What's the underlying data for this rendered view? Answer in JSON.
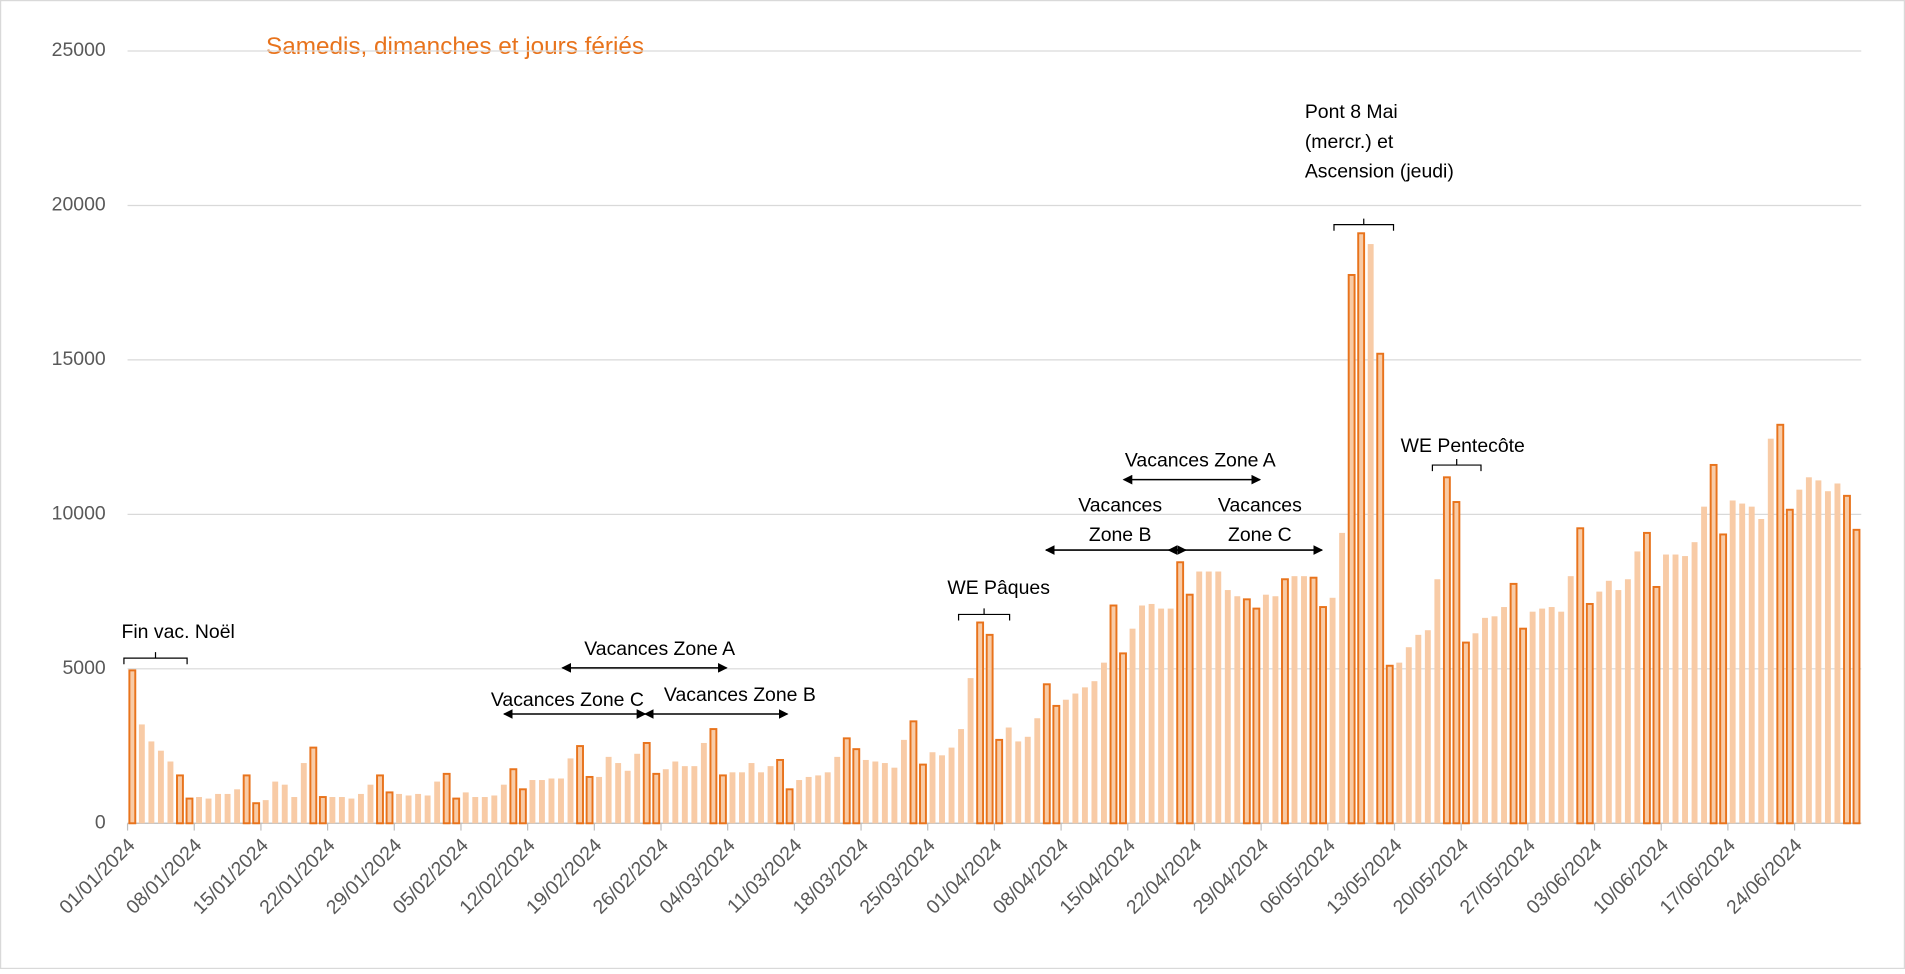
{
  "chart_data": {
    "type": "bar",
    "title": "Samedis, dimanches et jours fériés",
    "categories": [
      "01/01/2024",
      null,
      null,
      null,
      null,
      null,
      null,
      "08/01/2024",
      null,
      null,
      null,
      null,
      null,
      null,
      "15/01/2024",
      null,
      null,
      null,
      null,
      null,
      null,
      "22/01/2024",
      null,
      null,
      null,
      null,
      null,
      null,
      "29/01/2024",
      null,
      null,
      null,
      null,
      null,
      null,
      "05/02/2024",
      null,
      null,
      null,
      null,
      null,
      null,
      "12/02/2024",
      null,
      null,
      null,
      null,
      null,
      null,
      "19/02/2024",
      null,
      null,
      null,
      null,
      null,
      null,
      "26/02/2024",
      null,
      null,
      null,
      null,
      null,
      null,
      "04/03/2024",
      null,
      null,
      null,
      null,
      null,
      null,
      "11/03/2024",
      null,
      null,
      null,
      null,
      null,
      null,
      "18/03/2024",
      null,
      null,
      null,
      null,
      null,
      null,
      "25/03/2024",
      null,
      null,
      null,
      null,
      null,
      null,
      "01/04/2024",
      null,
      null,
      null,
      null,
      null,
      null,
      "08/04/2024",
      null,
      null,
      null,
      null,
      null,
      null,
      "15/04/2024",
      null,
      null,
      null,
      null,
      null,
      null,
      "22/04/2024",
      null,
      null,
      null,
      null,
      null,
      null,
      "29/04/2024",
      null,
      null,
      null,
      null,
      null,
      null,
      "06/05/2024",
      null,
      null,
      null,
      null,
      null,
      null,
      "13/05/2024",
      null,
      null,
      null,
      null,
      null,
      null,
      "20/05/2024",
      null,
      null,
      null,
      null,
      null,
      null,
      "27/05/2024",
      null,
      null,
      null,
      null,
      null,
      null,
      "03/06/2024",
      null,
      null,
      null,
      null,
      null,
      null,
      "10/06/2024",
      null,
      null,
      null,
      null,
      null,
      null,
      "17/06/2024",
      null,
      null,
      null,
      null,
      null,
      null,
      "24/06/2024",
      null,
      null,
      null,
      null,
      null,
      null
    ],
    "series": [
      {
        "name": "Samedis, dimanches et jours fériés",
        "color": "#e8731c",
        "values": [
          4950,
          null,
          null,
          null,
          null,
          1550,
          800,
          null,
          null,
          null,
          null,
          null,
          1550,
          650,
          null,
          null,
          null,
          null,
          null,
          2450,
          850,
          null,
          null,
          null,
          null,
          null,
          1550,
          1000,
          null,
          null,
          null,
          null,
          null,
          1600,
          800,
          null,
          null,
          null,
          null,
          null,
          1750,
          1100,
          null,
          null,
          null,
          null,
          null,
          2500,
          1500,
          null,
          null,
          null,
          null,
          null,
          2600,
          1600,
          null,
          null,
          null,
          null,
          null,
          3050,
          1550,
          null,
          null,
          null,
          null,
          null,
          2050,
          1100,
          null,
          null,
          null,
          null,
          null,
          2750,
          2400,
          null,
          null,
          null,
          null,
          null,
          3300,
          1900,
          null,
          null,
          null,
          null,
          null,
          6500,
          6100,
          2700,
          null,
          null,
          null,
          null,
          4500,
          3800,
          null,
          null,
          null,
          null,
          null,
          7050,
          5500,
          null,
          null,
          null,
          null,
          null,
          8450,
          7400,
          null,
          null,
          null,
          null,
          null,
          7250,
          6950,
          null,
          null,
          7900,
          null,
          null,
          7950,
          7000,
          null,
          null,
          17750,
          19100,
          null,
          15200,
          5100,
          null,
          null,
          null,
          null,
          null,
          11200,
          10400,
          5850,
          null,
          null,
          null,
          null,
          7750,
          6300,
          null,
          null,
          null,
          null,
          null,
          9550,
          7100,
          null,
          null,
          null,
          null,
          null,
          9400,
          7650,
          null,
          null,
          null,
          null,
          null,
          11600,
          9350,
          null,
          null,
          null,
          null,
          null,
          12900,
          10150,
          null,
          null,
          null,
          null,
          null,
          10600,
          9500
        ]
      },
      {
        "color": "#f8cba6",
        "values": [
          null,
          3200,
          2650,
          2350,
          2000,
          null,
          null,
          850,
          800,
          950,
          950,
          1100,
          null,
          null,
          750,
          1350,
          1250,
          850,
          1950,
          null,
          null,
          850,
          850,
          800,
          950,
          1250,
          null,
          null,
          950,
          900,
          950,
          900,
          1350,
          null,
          null,
          1000,
          850,
          850,
          900,
          1250,
          null,
          null,
          1400,
          1400,
          1450,
          1450,
          2100,
          null,
          null,
          1500,
          2150,
          1950,
          1700,
          2250,
          null,
          null,
          1750,
          2000,
          1850,
          1850,
          2600,
          null,
          null,
          1650,
          1650,
          1950,
          1650,
          1850,
          null,
          null,
          1400,
          1500,
          1550,
          1650,
          2150,
          null,
          null,
          2050,
          2000,
          1950,
          1800,
          2700,
          null,
          null,
          2300,
          2200,
          2450,
          3050,
          4700,
          null,
          null,
          null,
          3100,
          2650,
          2800,
          3400,
          null,
          null,
          4000,
          4200,
          4400,
          4600,
          5200,
          null,
          null,
          6300,
          7050,
          7100,
          6950,
          6950,
          null,
          null,
          8150,
          8150,
          8150,
          7550,
          7350,
          null,
          null,
          7400,
          7350,
          null,
          8000,
          8000,
          null,
          null,
          7300,
          9400,
          null,
          null,
          18750,
          null,
          null,
          5200,
          5700,
          6100,
          6250,
          7900,
          null,
          null,
          null,
          6150,
          6650,
          6700,
          7000,
          null,
          null,
          6850,
          6950,
          7000,
          6850,
          8000,
          null,
          null,
          7500,
          7850,
          7550,
          7900,
          8800,
          null,
          null,
          8700,
          8700,
          8650,
          9100,
          10250,
          null,
          null,
          10450,
          10350,
          10250,
          9850,
          12450,
          null,
          null,
          10800,
          11200,
          11100,
          10750,
          11000,
          null,
          null
        ]
      }
    ],
    "ylim": [
      0,
      25000
    ],
    "yticks": [
      0,
      5000,
      10000,
      15000,
      20000,
      25000
    ],
    "grid": true,
    "annotations": [
      [
        "Fin vac. Noël"
      ],
      [
        "Vacances Zone A"
      ],
      [
        "Vacances Zone C"
      ],
      [
        "Vacances Zone B"
      ],
      [
        "WE Pâques"
      ],
      [
        "Vacances",
        "Zone B"
      ],
      [
        "Vacances Zone A"
      ],
      [
        "Vacances",
        "Zone C"
      ],
      [
        "Pont 8 Mai",
        "(mercr.) et",
        "Ascension (jeudi)"
      ],
      [
        "WE Pentecôte"
      ]
    ]
  }
}
